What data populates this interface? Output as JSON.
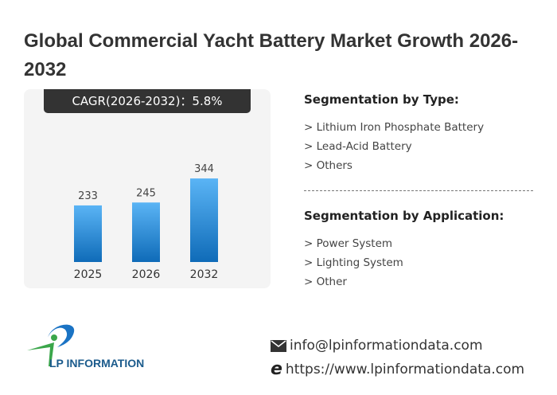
{
  "title": "Global Commercial Yacht Battery Market Growth 2026-2032",
  "cagr_label": "CAGR(2026-2032)：5.8%",
  "chart_data": {
    "type": "bar",
    "categories": [
      "2025",
      "2026",
      "2032"
    ],
    "values": [
      233,
      245,
      344
    ],
    "title": "",
    "xlabel": "",
    "ylabel": "",
    "ylim": [
      0,
      380
    ],
    "grid": false,
    "colors": {
      "top": "#5ab4f5",
      "bottom": "#0f6bb8"
    }
  },
  "segmentation_type": {
    "heading": "Segmentation by Type:",
    "items": [
      "> Lithium Iron Phosphate Battery",
      "> Lead-Acid Battery",
      "> Others"
    ]
  },
  "segmentation_app": {
    "heading": "Segmentation by Application:",
    "items": [
      "> Power System",
      "> Lighting System",
      "> Other"
    ]
  },
  "logo": {
    "text": "LP INFORMATION"
  },
  "contact": {
    "email": "info@lpinformationdata.com",
    "website": "https://www.lpinformationdata.com",
    "email_icon": "envelope-icon",
    "web_icon": "browser-e-icon"
  },
  "watermark": "LP INFORMATION"
}
